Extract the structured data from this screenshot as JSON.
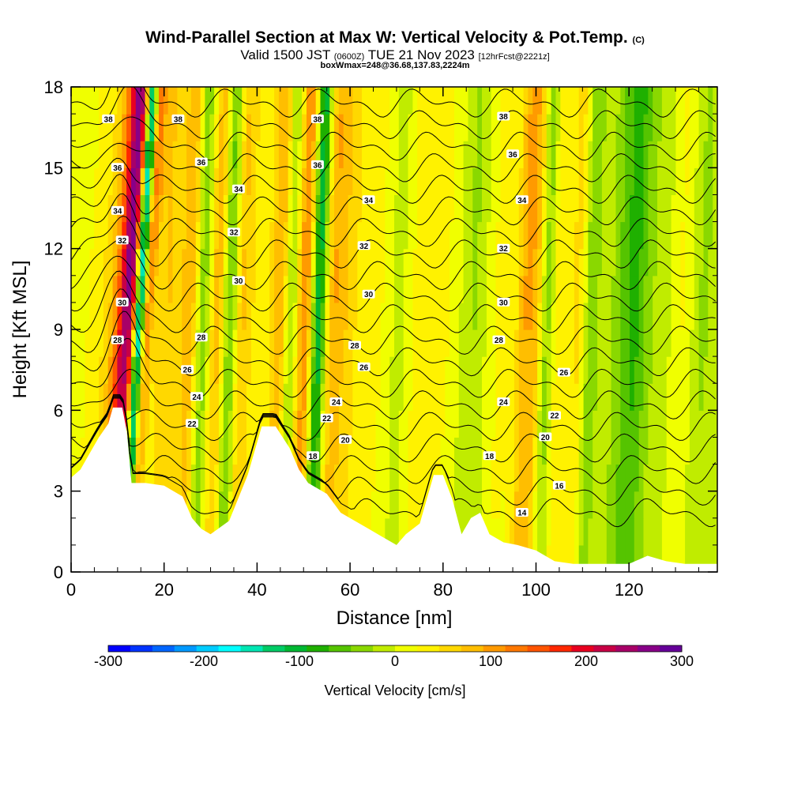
{
  "header": {
    "title": "Wind-Parallel Section at Max W: Vertical Velocity & Pot.Temp.",
    "title_mark": "(C)",
    "valid_prefix": "Valid 1500 JST",
    "valid_utc": "(0600Z)",
    "valid_date": "TUE 21 Nov 2023",
    "forecast_info": "[12hrFcst@2221z]",
    "box_info": "boxWmax=248@36.68,137.83,2224m"
  },
  "chart_data": {
    "type": "heatmap",
    "xlabel": "Distance [nm]",
    "ylabel": "Height [Kft MSL]",
    "xlim": [
      0,
      139
    ],
    "ylim": [
      0,
      18
    ],
    "x_ticks": [
      0,
      20,
      40,
      60,
      80,
      100,
      120
    ],
    "y_ticks": [
      0,
      3,
      6,
      9,
      12,
      15,
      18
    ],
    "grid": false,
    "colorbar": {
      "label": "Vertical Velocity [cm/s]",
      "ticks": [
        -300,
        -200,
        -100,
        0,
        100,
        200,
        300
      ],
      "colors": [
        "#0000ff",
        "#0033ff",
        "#0066ff",
        "#0099ff",
        "#00ccff",
        "#00ffff",
        "#00e6b3",
        "#00cc66",
        "#00b833",
        "#1fb000",
        "#55c400",
        "#8ad800",
        "#c0ec00",
        "#f0ff00",
        "#fff200",
        "#ffd800",
        "#ffbe00",
        "#ff9a00",
        "#ff7800",
        "#ff5400",
        "#ff2800",
        "#e80020",
        "#c80045",
        "#a80068",
        "#880088",
        "#660099"
      ]
    },
    "terrain_kft": {
      "x": [
        0,
        2,
        4,
        6,
        8,
        9,
        11,
        12,
        13,
        14,
        16,
        20,
        24,
        26,
        28,
        30,
        34,
        38,
        41,
        44,
        47,
        49,
        51,
        55,
        58,
        61,
        64,
        67,
        70,
        72,
        75,
        78,
        80,
        82,
        84,
        86,
        88,
        90,
        93,
        96,
        100,
        104,
        108,
        112,
        116,
        120,
        124,
        128,
        132,
        136,
        139
      ],
      "height": [
        3.5,
        3.8,
        4.4,
        5.0,
        5.5,
        6.1,
        6.1,
        5.2,
        3.3,
        3.3,
        3.3,
        3.2,
        2.8,
        2.0,
        1.6,
        1.4,
        1.9,
        3.6,
        5.4,
        5.4,
        4.6,
        3.8,
        3.3,
        2.9,
        2.2,
        1.9,
        1.6,
        1.3,
        1.0,
        1.4,
        1.8,
        3.6,
        3.6,
        2.7,
        1.4,
        2.0,
        2.2,
        1.4,
        1.1,
        1.0,
        0.8,
        0.4,
        0.3,
        0.3,
        0.3,
        0.3,
        0.6,
        0.4,
        0.3,
        0.3,
        0.3
      ]
    },
    "theta_contour_labels": [
      {
        "value": "14",
        "x": 97,
        "y": 2.2
      },
      {
        "value": "16",
        "x": 105,
        "y": 3.2
      },
      {
        "value": "18",
        "x": 52,
        "y": 4.3
      },
      {
        "value": "18",
        "x": 90,
        "y": 4.3
      },
      {
        "value": "20",
        "x": 59,
        "y": 4.9
      },
      {
        "value": "20",
        "x": 102,
        "y": 5.0
      },
      {
        "value": "22",
        "x": 26,
        "y": 5.5
      },
      {
        "value": "22",
        "x": 55,
        "y": 5.7
      },
      {
        "value": "22",
        "x": 104,
        "y": 5.8
      },
      {
        "value": "24",
        "x": 27,
        "y": 6.5
      },
      {
        "value": "24",
        "x": 57,
        "y": 6.3
      },
      {
        "value": "24",
        "x": 93,
        "y": 6.3
      },
      {
        "value": "26",
        "x": 25,
        "y": 7.5
      },
      {
        "value": "26",
        "x": 63,
        "y": 7.6
      },
      {
        "value": "26",
        "x": 106,
        "y": 7.4
      },
      {
        "value": "28",
        "x": 10,
        "y": 8.6
      },
      {
        "value": "28",
        "x": 28,
        "y": 8.7
      },
      {
        "value": "28",
        "x": 61,
        "y": 8.4
      },
      {
        "value": "28",
        "x": 92,
        "y": 8.6
      },
      {
        "value": "30",
        "x": 11,
        "y": 10.0
      },
      {
        "value": "30",
        "x": 36,
        "y": 10.8
      },
      {
        "value": "30",
        "x": 64,
        "y": 10.3
      },
      {
        "value": "30",
        "x": 93,
        "y": 10.0
      },
      {
        "value": "32",
        "x": 11,
        "y": 12.3
      },
      {
        "value": "32",
        "x": 35,
        "y": 12.6
      },
      {
        "value": "32",
        "x": 63,
        "y": 12.1
      },
      {
        "value": "32",
        "x": 93,
        "y": 12.0
      },
      {
        "value": "34",
        "x": 10,
        "y": 13.4
      },
      {
        "value": "34",
        "x": 36,
        "y": 14.2
      },
      {
        "value": "34",
        "x": 64,
        "y": 13.8
      },
      {
        "value": "34",
        "x": 97,
        "y": 13.8
      },
      {
        "value": "36",
        "x": 10,
        "y": 15.0
      },
      {
        "value": "36",
        "x": 28,
        "y": 15.2
      },
      {
        "value": "36",
        "x": 53,
        "y": 15.1
      },
      {
        "value": "36",
        "x": 95,
        "y": 15.5
      },
      {
        "value": "38",
        "x": 8,
        "y": 16.8
      },
      {
        "value": "38",
        "x": 23,
        "y": 16.8
      },
      {
        "value": "38",
        "x": 53,
        "y": 16.8
      },
      {
        "value": "38",
        "x": 93,
        "y": 16.9
      }
    ]
  }
}
